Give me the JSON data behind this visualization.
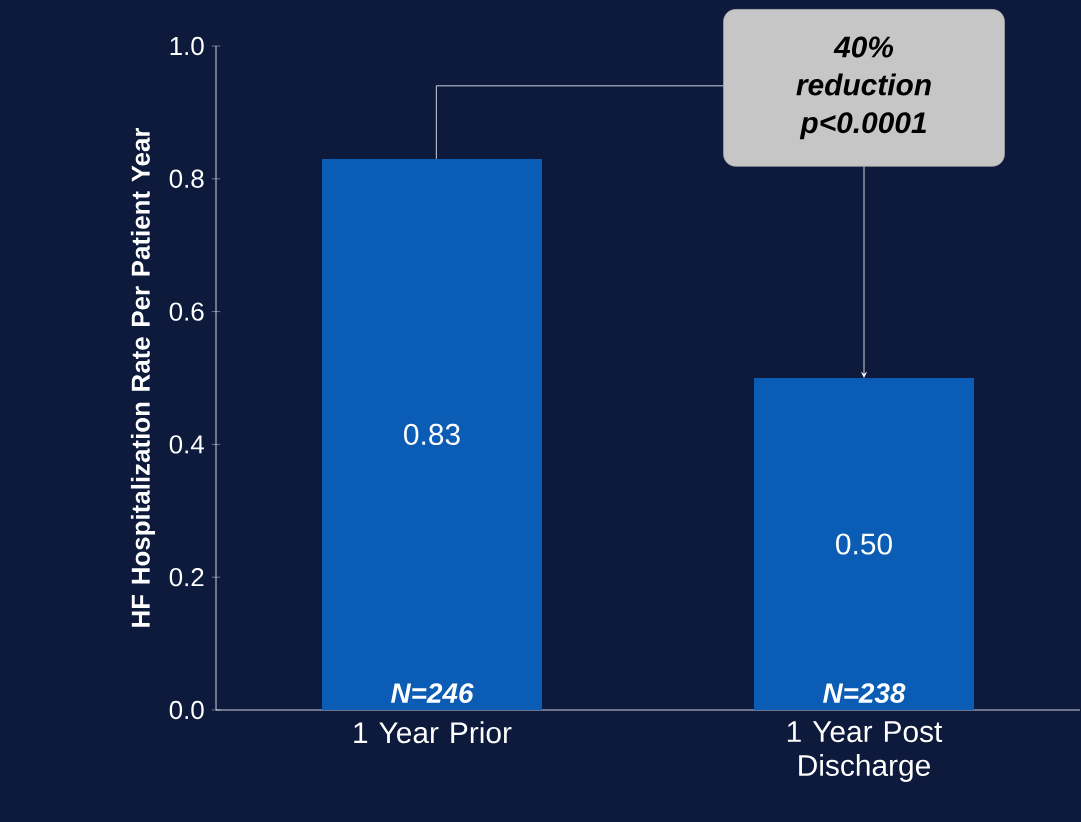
{
  "chart_data": {
    "type": "bar",
    "ylabel": "HF Hospitalization Rate  Per Patient Year",
    "categories": [
      "1 Year Prior",
      "1 Year Post Discharge"
    ],
    "values": [
      0.83,
      0.5
    ],
    "color": "#0b5cb5",
    "value_labels": [
      "0.83",
      "0.50"
    ],
    "ylim": [
      0,
      1
    ],
    "yticks": [
      {
        "value": 0,
        "label": "0.0"
      },
      {
        "value": 0.2,
        "label": "0.2"
      },
      {
        "value": 0.4,
        "label": "0.4"
      },
      {
        "value": 0.6,
        "label": "0.6"
      },
      {
        "value": 0.8,
        "label": "0.8"
      },
      {
        "value": 1,
        "label": "1.0"
      }
    ],
    "annotations": [
      {
        "text": "40% reduction p<0.0001",
        "x": "1 Year Post Discharge",
        "y": 0.5
      },
      {
        "text": "N=246",
        "x": "1 Year Prior",
        "y": 0
      },
      {
        "text": "N=238",
        "x": "1 Year Post Discharge",
        "y": 0
      }
    ]
  }
}
